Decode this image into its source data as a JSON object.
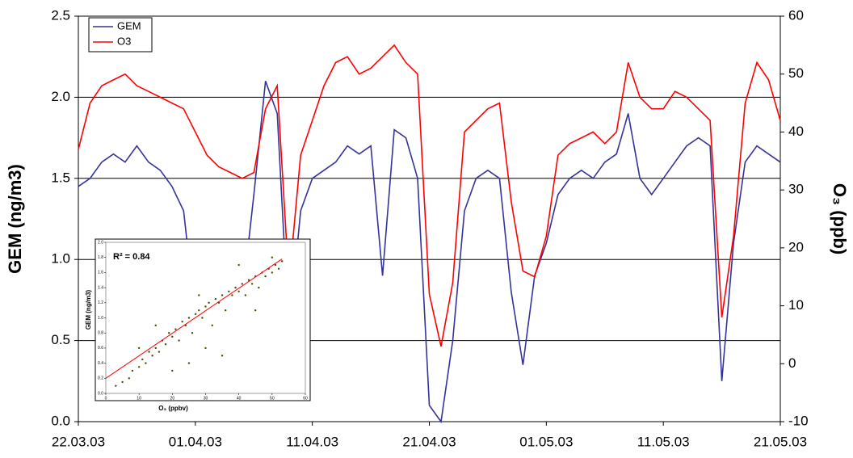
{
  "chart_data": [
    {
      "type": "line",
      "y_label": "GEM  (ng/m3)",
      "y2_label": "O₃ (ppb)",
      "x": [
        "22.03.03",
        "23.03.03",
        "24.03.03",
        "25.03.03",
        "26.03.03",
        "27.03.03",
        "28.03.03",
        "29.03.03",
        "30.03.03",
        "31.03.03",
        "01.04.03",
        "02.04.03",
        "03.04.03",
        "04.04.03",
        "05.04.03",
        "06.04.03",
        "07.04.03",
        "08.04.03",
        "09.04.03",
        "10.04.03",
        "11.04.03",
        "12.04.03",
        "13.04.03",
        "14.04.03",
        "15.04.03",
        "16.04.03",
        "17.04.03",
        "18.04.03",
        "19.04.03",
        "20.04.03",
        "21.04.03",
        "22.04.03",
        "23.04.03",
        "24.04.03",
        "25.04.03",
        "26.04.03",
        "27.04.03",
        "28.04.03",
        "29.04.03",
        "30.04.03",
        "01.05.03",
        "02.05.03",
        "03.05.03",
        "04.05.03",
        "05.05.03",
        "06.05.03",
        "07.05.03",
        "08.05.03",
        "09.05.03",
        "10.05.03",
        "11.05.03",
        "12.05.03",
        "13.05.03",
        "14.05.03",
        "15.05.03",
        "16.05.03",
        "17.05.03",
        "18.05.03",
        "19.05.03",
        "20.05.03",
        "21.05.03"
      ],
      "series": [
        {
          "name": "GEM",
          "color": "#333399",
          "values": [
            1.45,
            1.5,
            1.6,
            1.65,
            1.6,
            1.7,
            1.6,
            1.55,
            1.45,
            1.3,
            0.65,
            1.1,
            1.0,
            1.1,
            0.75,
            1.4,
            2.1,
            1.9,
            0.55,
            1.3,
            1.5,
            1.55,
            1.6,
            1.7,
            1.65,
            1.7,
            0.9,
            1.8,
            1.75,
            1.5,
            0.1,
            0.0,
            0.5,
            1.3,
            1.5,
            1.55,
            1.5,
            0.8,
            0.35,
            0.9,
            1.1,
            1.4,
            1.5,
            1.55,
            1.5,
            1.6,
            1.65,
            1.9,
            1.5,
            1.4,
            1.5,
            1.6,
            1.7,
            1.75,
            1.7,
            0.25,
            1.1,
            1.6,
            1.7,
            1.65,
            1.6
          ]
        },
        {
          "name": "O3",
          "color": "#ff0000",
          "axis": "y2",
          "values": [
            37,
            45,
            48,
            49,
            50,
            48,
            47,
            46,
            45,
            44,
            40,
            36,
            34,
            33,
            32,
            33,
            44,
            48,
            14,
            36,
            42,
            48,
            52,
            53,
            50,
            51,
            53,
            55,
            52,
            50,
            12,
            3,
            14,
            40,
            42,
            44,
            45,
            28,
            16,
            15,
            22,
            36,
            38,
            39,
            40,
            38,
            40,
            52,
            46,
            44,
            44,
            47,
            46,
            44,
            42,
            8,
            22,
            45,
            52,
            49,
            42
          ]
        }
      ],
      "xlim": [
        "22.03.03",
        "21.05.03"
      ],
      "xticks": [
        "22.03.03",
        "01.04.03",
        "11.04.03",
        "21.04.03",
        "01.05.03",
        "11.05.03",
        "21.05.03"
      ],
      "ylim": [
        0,
        2.5
      ],
      "yticks": [
        {
          "value": 0,
          "label": "0.0"
        },
        {
          "value": 0.5,
          "label": "0.5"
        },
        {
          "value": 1,
          "label": "1.0"
        },
        {
          "value": 1.5,
          "label": "1.5"
        },
        {
          "value": 2,
          "label": "2.0"
        },
        {
          "value": 2.5,
          "label": "2.5"
        }
      ],
      "y2lim": [
        -10,
        60
      ],
      "y2ticks": [
        -10,
        0,
        10,
        20,
        30,
        40,
        50,
        60
      ],
      "grid": true,
      "legend": "top-left"
    },
    {
      "type": "scatter",
      "x_label": "O₃ (ppbv)",
      "y_label": "GEM (ng/m3)",
      "annotation": "R² = 0.84",
      "color": "#4a4a00",
      "fit_color": "#ff0000",
      "x": [
        3,
        5,
        7,
        8,
        10,
        11,
        12,
        13,
        14,
        15,
        16,
        17,
        18,
        19,
        20,
        21,
        22,
        23,
        24,
        25,
        26,
        27,
        28,
        29,
        30,
        31,
        32,
        33,
        34,
        35,
        36,
        37,
        38,
        39,
        40,
        41,
        42,
        43,
        44,
        45,
        46,
        47,
        48,
        49,
        50,
        51,
        52,
        53,
        20,
        25,
        30,
        35,
        28,
        15,
        40,
        50,
        45,
        10
      ],
      "values": [
        0.1,
        0.15,
        0.2,
        0.3,
        0.35,
        0.45,
        0.4,
        0.55,
        0.5,
        0.6,
        0.55,
        0.7,
        0.65,
        0.8,
        0.75,
        0.85,
        0.7,
        0.95,
        0.9,
        1.0,
        0.8,
        1.05,
        1.1,
        1.0,
        1.15,
        1.2,
        0.9,
        1.25,
        1.2,
        1.3,
        1.1,
        1.35,
        1.3,
        1.4,
        1.35,
        1.45,
        1.3,
        1.5,
        1.45,
        1.55,
        1.4,
        1.6,
        1.55,
        1.65,
        1.6,
        1.7,
        1.65,
        1.75,
        0.3,
        0.4,
        0.6,
        0.5,
        1.3,
        0.9,
        1.7,
        1.8,
        1.1,
        0.6
      ],
      "fit": {
        "x": [
          0,
          53
        ],
        "values": [
          0.2,
          1.78
        ]
      },
      "xlim": [
        0,
        60
      ],
      "xticks": [
        0,
        10,
        20,
        30,
        40,
        50,
        60
      ],
      "ylim": [
        0,
        2
      ],
      "yticks": [
        {
          "value": 0,
          "label": "0.0"
        },
        {
          "value": 0.2,
          "label": "0.2"
        },
        {
          "value": 0.4,
          "label": "0.4"
        },
        {
          "value": 0.6,
          "label": "0.6"
        },
        {
          "value": 0.8,
          "label": "0.8"
        },
        {
          "value": 1,
          "label": "1.0"
        },
        {
          "value": 1.2,
          "label": "1.2"
        },
        {
          "value": 1.4,
          "label": "1.4"
        },
        {
          "value": 1.6,
          "label": "1.6"
        },
        {
          "value": 1.8,
          "label": "1.8"
        },
        {
          "value": 2,
          "label": "2.0"
        }
      ]
    }
  ]
}
